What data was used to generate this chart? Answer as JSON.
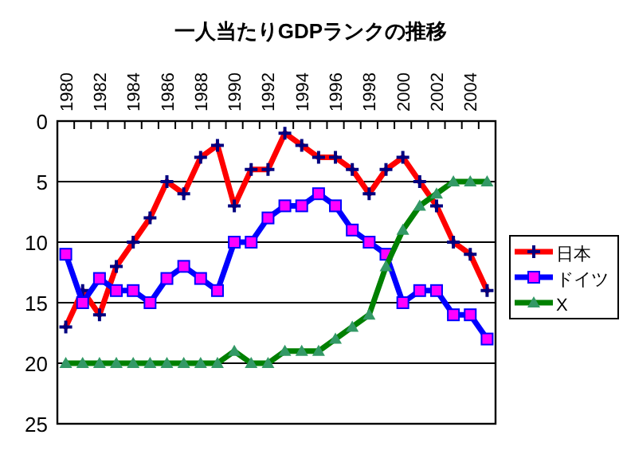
{
  "chart_data": {
    "type": "line",
    "title": "一人当たりGDPランクの推移",
    "categories": [
      "1980",
      null,
      "1982",
      null,
      "1984",
      null,
      "1986",
      null,
      "1988",
      null,
      "1990",
      null,
      "1992",
      null,
      "1994",
      null,
      "1996",
      null,
      "1998",
      null,
      "2000",
      null,
      "2002",
      null,
      "2004",
      null
    ],
    "series": [
      {
        "name": "日本",
        "color": "#ff0000",
        "marker": "cross",
        "values": [
          17,
          14,
          16,
          12,
          10,
          8,
          5,
          6,
          3,
          2,
          7,
          4,
          4,
          1,
          2,
          3,
          3,
          4,
          6,
          4,
          3,
          5,
          7,
          10,
          11,
          14
        ]
      },
      {
        "name": "ドイツ",
        "color": "#0000ff",
        "marker": "square",
        "values": [
          11,
          15,
          13,
          14,
          14,
          15,
          13,
          12,
          13,
          14,
          10,
          10,
          8,
          7,
          7,
          6,
          7,
          9,
          10,
          11,
          15,
          14,
          14,
          16,
          16,
          18
        ]
      },
      {
        "name": "X",
        "color": "#008000",
        "marker": "triangle",
        "values": [
          20,
          20,
          20,
          20,
          20,
          20,
          20,
          20,
          20,
          20,
          19,
          20,
          20,
          19,
          19,
          19,
          18,
          17,
          16,
          12,
          9,
          7,
          6,
          5,
          5,
          5
        ]
      }
    ],
    "ylim": [
      25,
      0
    ],
    "yticks": [
      0,
      5,
      10,
      15,
      20,
      25
    ],
    "grid": "y",
    "legend": "right"
  }
}
